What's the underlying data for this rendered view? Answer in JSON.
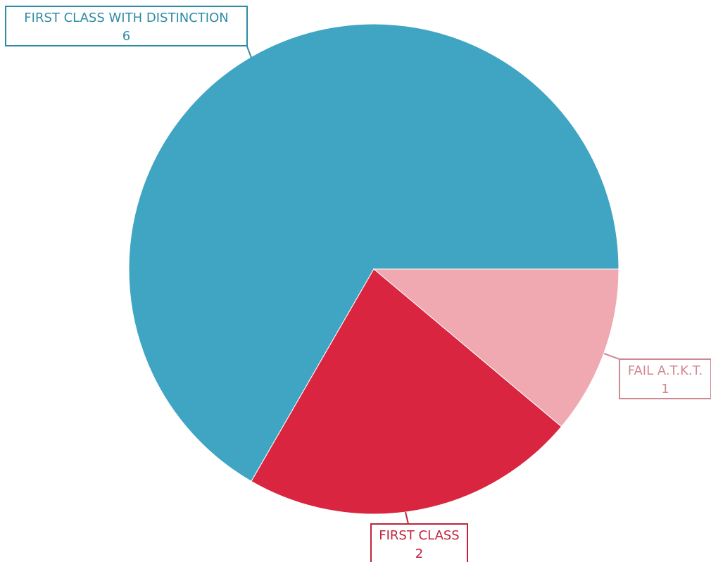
{
  "chart_data": {
    "type": "pie",
    "categories": [
      "FIRST CLASS WITH DISTINCTION",
      "FIRST CLASS",
      "FAIL A.T.K.T."
    ],
    "values": [
      6,
      2,
      1
    ],
    "colors": [
      "#3fa5c2",
      "#d9253f",
      "#f0a9b1"
    ],
    "label_colors": [
      "#2f8ca5",
      "#c0233b",
      "#cf8892"
    ],
    "legend": "none"
  }
}
